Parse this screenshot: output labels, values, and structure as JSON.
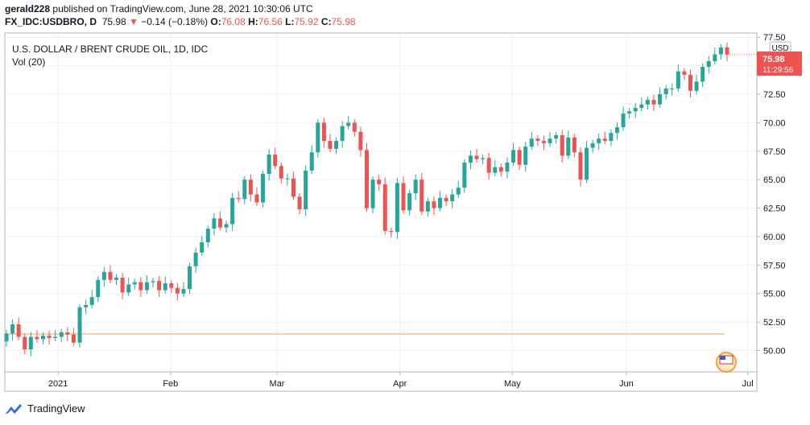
{
  "header": {
    "user": "gerald228",
    "published": "published on TradingView.com, June 28, 2021 10:30:06 UTC",
    "symbol": "FX_IDC:USDBRO, D",
    "last": "75.98",
    "change": "−0.14 (−0.18%)",
    "o_label": "O:",
    "o": "76.08",
    "h_label": "H:",
    "h": "76.56",
    "l_label": "L:",
    "l": "75.92",
    "c_label": "C:",
    "c": "75.98"
  },
  "legend": {
    "title": "U.S. DOLLAR / BRENT CRUDE OIL, 1D, IDC",
    "vol": "Vol (20)"
  },
  "price_axis": {
    "currency": "USD",
    "last_price": "75.98",
    "countdown": "11:29:56"
  },
  "footer": {
    "brand": "TradingView"
  },
  "colors": {
    "up": "#26a69a",
    "down": "#ef5350",
    "hline": "#f7a24a",
    "grid": "#eef0f3"
  },
  "chart_data": {
    "type": "candlestick",
    "title": "U.S. DOLLAR / BRENT CRUDE OIL, 1D, IDC",
    "ylim": [
      48.2,
      77.8
    ],
    "y_ticks": [
      "77.50",
      "75.00",
      "72.50",
      "70.00",
      "67.50",
      "65.00",
      "62.50",
      "60.00",
      "57.50",
      "55.00",
      "52.50",
      "50.00"
    ],
    "x_ticks": [
      "2021",
      "Feb",
      "Mar",
      "Apr",
      "May",
      "Jun",
      "Jul"
    ],
    "horizontal_line": 51.45,
    "closes": [
      51.5,
      52.3,
      51.2,
      50.1,
      51.2,
      51.0,
      51.3,
      51.1,
      51.2,
      51.6,
      51.4,
      50.7,
      53.8,
      54.0,
      54.7,
      56.2,
      56.9,
      56.2,
      56.4,
      55.1,
      55.8,
      56.0,
      55.3,
      56.0,
      56.1,
      55.3,
      55.9,
      55.5,
      55.0,
      55.4,
      57.4,
      58.6,
      59.5,
      60.7,
      61.6,
      60.8,
      61.1,
      63.4,
      63.3,
      65.0,
      63.7,
      63.0,
      65.5,
      67.2,
      66.2,
      65.1,
      65.1,
      63.5,
      62.4,
      65.8,
      67.4,
      70.0,
      68.4,
      67.7,
      68.4,
      69.7,
      70.0,
      69.2,
      67.6,
      62.5,
      65.0,
      64.6,
      60.5,
      60.4,
      64.7,
      62.3,
      63.8,
      65.0,
      62.2,
      63.1,
      62.5,
      63.4,
      63.1,
      63.7,
      64.3,
      66.5,
      67.1,
      66.8,
      66.9,
      65.6,
      66.1,
      65.7,
      66.5,
      67.6,
      66.3,
      67.9,
      68.6,
      68.4,
      68.2,
      68.6,
      68.9,
      67.1,
      68.7,
      67.4,
      65.0,
      67.8,
      68.2,
      68.6,
      68.4,
      69.1,
      69.6,
      70.8,
      71.0,
      71.3,
      71.6,
      72.0,
      71.6,
      72.5,
      73.0,
      73.0,
      74.5,
      74.2,
      72.8,
      73.6,
      74.9,
      75.4,
      76.0,
      76.6,
      75.98
    ]
  }
}
